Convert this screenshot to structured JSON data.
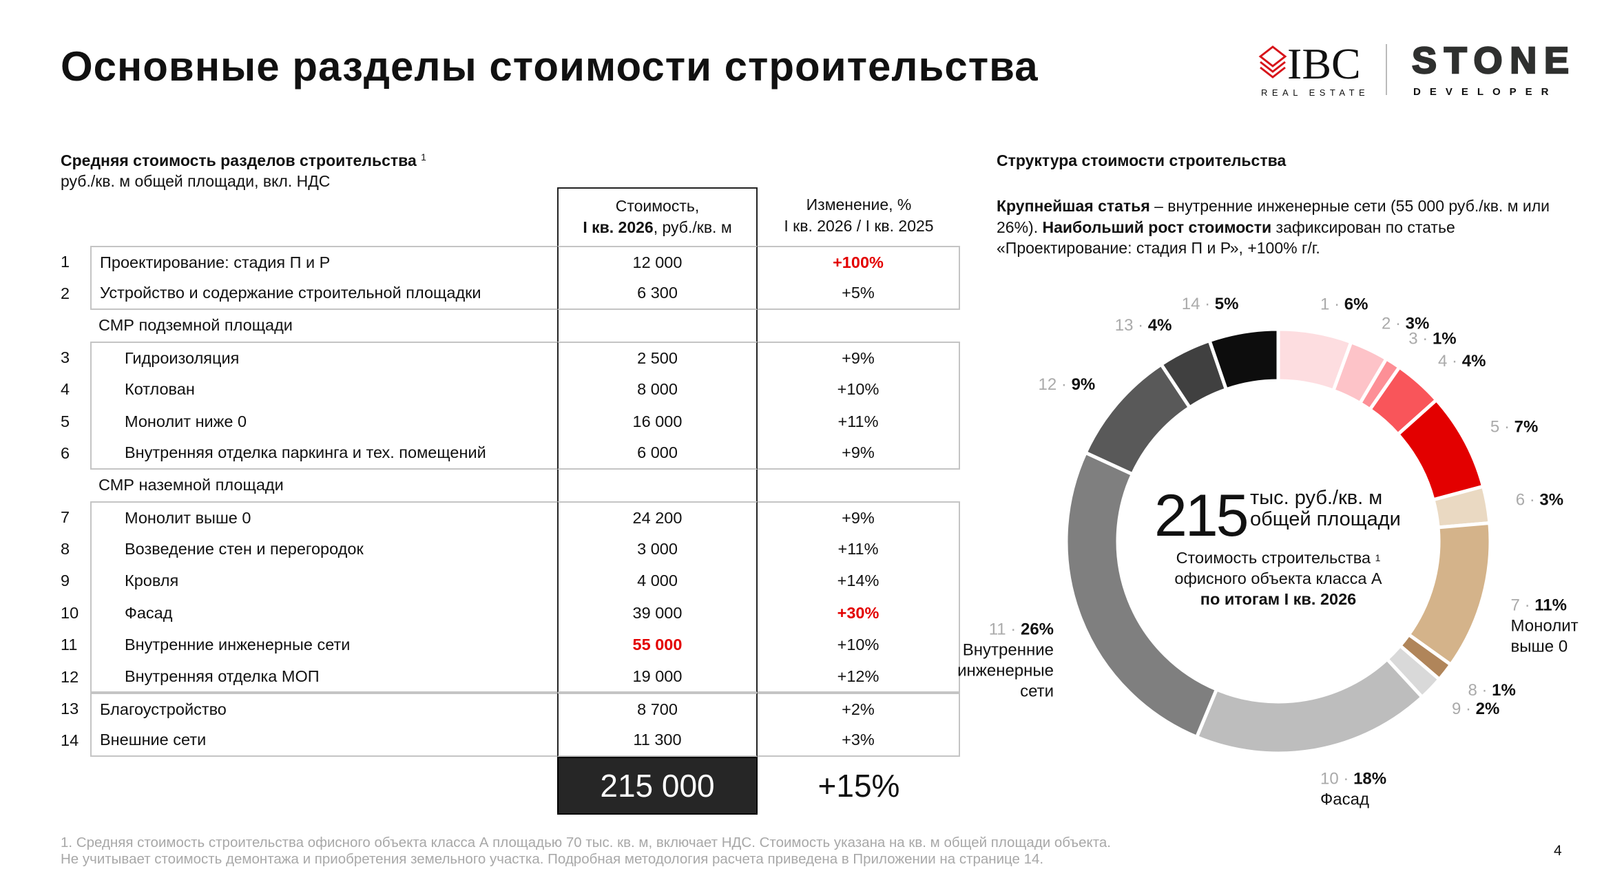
{
  "title": "Основные разделы стоимости строительства",
  "logos": {
    "ibc": "IBC",
    "ibc_sub": "REAL ESTATE",
    "stone": "STONE",
    "stone_sub": "DEVELOPER",
    "ibc_color": "#d7141a"
  },
  "left": {
    "title": "Средняя стоимость разделов строительства",
    "title_sup": "1",
    "subtitle": "руб./кв. м общей площади, вкл. НДС",
    "col_cost_l1": "Стоимость,",
    "col_cost_l2_bold": "I кв. 2026",
    "col_cost_l2": ", руб./кв. м",
    "col_change_l1": "Изменение, %",
    "col_change_l2": "I кв. 2026 / I кв. 2025",
    "rows": [
      {
        "num": "1",
        "label": "Проектирование: стадия П и Р",
        "cost": "12 000",
        "change": "+100%",
        "change_red": true,
        "indent": 0
      },
      {
        "num": "2",
        "label": "Устройство и содержание строительной площадки",
        "cost": "6 300",
        "change": "+5%",
        "indent": 0
      },
      {
        "heading": true,
        "label": "СМР подземной площади"
      },
      {
        "num": "3",
        "label": "Гидроизоляция",
        "cost": "2 500",
        "change": "+9%",
        "indent": 1
      },
      {
        "num": "4",
        "label": "Котлован",
        "cost": "8 000",
        "change": "+10%",
        "indent": 1
      },
      {
        "num": "5",
        "label": "Монолит ниже 0",
        "cost": "16 000",
        "change": "+11%",
        "indent": 1
      },
      {
        "num": "6",
        "label": "Внутренняя отделка паркинга и тех. помещений",
        "cost": "6 000",
        "change": "+9%",
        "indent": 1
      },
      {
        "heading": true,
        "label": "СМР наземной площади"
      },
      {
        "num": "7",
        "label": "Монолит выше 0",
        "cost": "24 200",
        "change": "+9%",
        "indent": 1
      },
      {
        "num": "8",
        "label": "Возведение стен и перегородок",
        "cost": "3 000",
        "change": "+11%",
        "indent": 1
      },
      {
        "num": "9",
        "label": "Кровля",
        "cost": "4 000",
        "change": "+14%",
        "indent": 1
      },
      {
        "num": "10",
        "label": "Фасад",
        "cost": "39 000",
        "change": "+30%",
        "change_red": true,
        "indent": 1
      },
      {
        "num": "11",
        "label": "Внутренние инженерные сети",
        "cost": "55 000",
        "cost_red": true,
        "change": "+10%",
        "indent": 1
      },
      {
        "num": "12",
        "label": "Внутренняя отделка МОП",
        "cost": "19 000",
        "change": "+12%",
        "indent": 1
      },
      {
        "num": "13",
        "label": "Благоустройство",
        "cost": "8 700",
        "change": "+2%",
        "indent": 0
      },
      {
        "num": "14",
        "label": "Внешние сети",
        "cost": "11 300",
        "change": "+3%",
        "indent": 0
      }
    ],
    "total_cost": "215 000",
    "total_change": "+15%"
  },
  "right": {
    "title": "Структура стоимости строительства",
    "p_bold1": "Крупнейшая статья",
    "p_text1": " – внутренние инженерные сети (55 000 руб./кв. м или 26%). ",
    "p_bold2": "Наибольший рост стоимости",
    "p_text2": " зафиксирован по статье «Проектирование: стадия П и Р», +100% г/г.",
    "center_value": "215",
    "center_unit_l1": "тыс. руб./кв. м",
    "center_unit_l2": "общей площади",
    "center_desc_l1": "Стоимость строительства",
    "center_desc_sup": "1",
    "center_desc_l2": "офисного объекта класса А",
    "center_desc_l3": "по итогам I кв. 2026"
  },
  "chart_data": {
    "type": "pie",
    "donut": true,
    "total": 215000,
    "slices": [
      {
        "id": "1",
        "value": 12000,
        "pct": "6%",
        "color": "#fddde0"
      },
      {
        "id": "2",
        "value": 6300,
        "pct": "3%",
        "color": "#fdc3c8"
      },
      {
        "id": "3",
        "value": 2500,
        "pct": "1%",
        "color": "#fd8f96"
      },
      {
        "id": "4",
        "value": 8000,
        "pct": "4%",
        "color": "#f9555a"
      },
      {
        "id": "5",
        "value": 16000,
        "pct": "7%",
        "color": "#e30000"
      },
      {
        "id": "6",
        "value": 6000,
        "pct": "3%",
        "color": "#ead9c2"
      },
      {
        "id": "7",
        "value": 24200,
        "pct": "11%",
        "color": "#d4b38a",
        "name": [
          "Монолит",
          "выше 0"
        ]
      },
      {
        "id": "8",
        "value": 3000,
        "pct": "1%",
        "color": "#b0855a"
      },
      {
        "id": "9",
        "value": 4000,
        "pct": "2%",
        "color": "#d9d9d9"
      },
      {
        "id": "10",
        "value": 39000,
        "pct": "18%",
        "color": "#bdbdbd",
        "name": [
          "Фасад"
        ]
      },
      {
        "id": "11",
        "value": 55000,
        "pct": "26%",
        "color": "#7f7f7f",
        "name": [
          "Внутренние",
          "инженерные",
          "сети"
        ]
      },
      {
        "id": "12",
        "value": 19000,
        "pct": "9%",
        "color": "#595959"
      },
      {
        "id": "13",
        "value": 8700,
        "pct": "4%",
        "color": "#404040"
      },
      {
        "id": "14",
        "value": 11300,
        "pct": "5%",
        "color": "#0d0d0d"
      }
    ]
  },
  "footnote_l1": "1. Средняя стоимость строительства офисного объекта класса А площадью 70 тыс. кв. м, включает НДС. Стоимость указана на кв. м общей площади объекта.",
  "footnote_l2": "Не учитывает стоимость демонтажа и приобретения земельного участка. Подробная методология расчета приведена в Приложении на странице 14.",
  "page_number": "4"
}
